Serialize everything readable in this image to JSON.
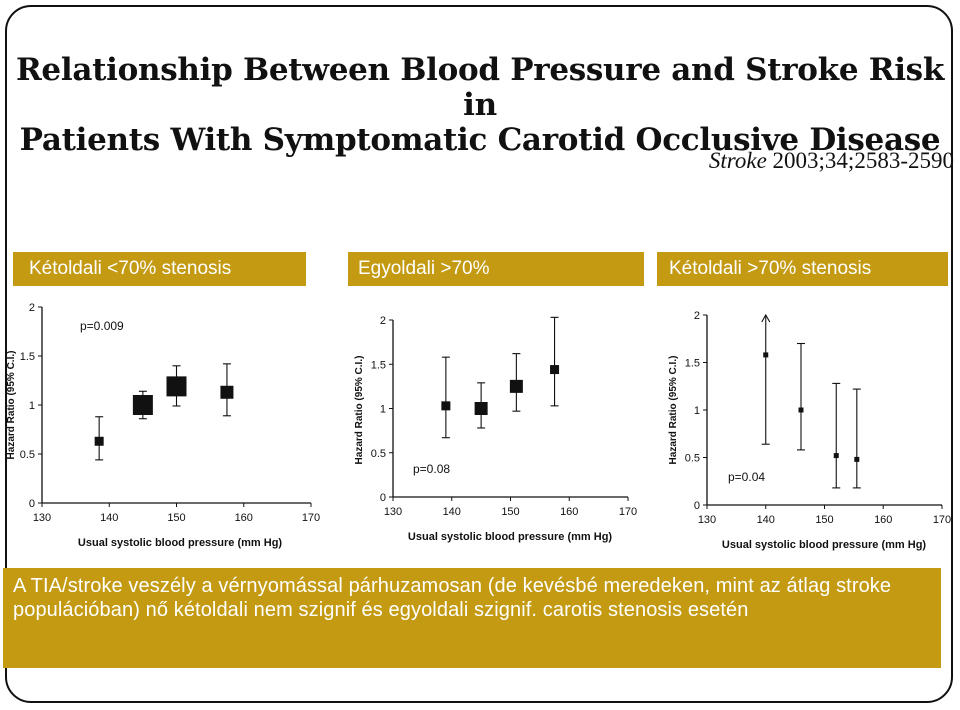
{
  "slide": {
    "title_line1": "Relationship Between Blood Pressure and Stroke Risk in",
    "title_line2": "Patients With Symptomatic Carotid Occlusive Disease",
    "citation_journal": "Stroke",
    "citation_ref": "2003;34;2583-2590",
    "panel_labels": [
      "Kétoldali <70% stenosis",
      "Egyoldali >70%",
      "Kétoldali >70% stenosis"
    ],
    "footer_text": "A TIA/stroke veszély a vérnyomással párhuzamosan (de kevésbé meredeken, mint az átlag stroke populációban) nő kétoldali nem szignif és egyoldali szignif. carotis stenosis esetén",
    "colors": {
      "accent": "#c39a12",
      "text": "#111111"
    }
  },
  "chart_data": [
    {
      "type": "scatter",
      "title": "Kétoldali <70% stenosis",
      "xlabel": "Usual systolic blood pressure (mm Hg)",
      "ylabel": "Hazard Ratio (95% C.I.)",
      "xlim": [
        130,
        170
      ],
      "ylim": [
        0,
        2
      ],
      "xticks": [
        130,
        140,
        150,
        160,
        170
      ],
      "yticks": [
        0,
        0.5,
        1,
        1.5,
        2
      ],
      "xtick_labels": [
        "130",
        "140",
        "150",
        "160",
        "170"
      ],
      "ytick_labels": [
        "0",
        "0.5",
        "1",
        "1.5",
        "2"
      ],
      "annotation": "p=0.009",
      "points": [
        {
          "x": 138.5,
          "y": 0.63,
          "lo": 0.44,
          "hi": 0.88,
          "size": "small"
        },
        {
          "x": 145,
          "y": 1.0,
          "lo": 0.86,
          "hi": 1.14,
          "size": "large"
        },
        {
          "x": 150,
          "y": 1.19,
          "lo": 0.99,
          "hi": 1.4,
          "size": "large"
        },
        {
          "x": 157.5,
          "y": 1.13,
          "lo": 0.89,
          "hi": 1.42,
          "size": "medium"
        }
      ]
    },
    {
      "type": "scatter",
      "title": "Egyoldali >70%",
      "xlabel": "Usual systolic blood pressure (mm Hg)",
      "ylabel": "Hazard Ratio (95% C.I.)",
      "xlim": [
        130,
        170
      ],
      "ylim": [
        0,
        2
      ],
      "xticks": [
        130,
        140,
        150,
        160,
        170
      ],
      "yticks": [
        0,
        0.5,
        1,
        1.5,
        2
      ],
      "xtick_labels": [
        "130",
        "140",
        "150",
        "160",
        "170"
      ],
      "ytick_labels": [
        "0",
        "0.5",
        "1",
        "1.5",
        "2"
      ],
      "annotation": "p=0.08",
      "points": [
        {
          "x": 139,
          "y": 1.03,
          "lo": 0.67,
          "hi": 1.58,
          "size": "small"
        },
        {
          "x": 145,
          "y": 1.0,
          "lo": 0.78,
          "hi": 1.29,
          "size": "medium"
        },
        {
          "x": 151,
          "y": 1.25,
          "lo": 0.97,
          "hi": 1.62,
          "size": "medium"
        },
        {
          "x": 157.5,
          "y": 1.44,
          "lo": 1.03,
          "hi": 2.03,
          "size": "small"
        }
      ]
    },
    {
      "type": "scatter",
      "title": "Kétoldali >70% stenosis",
      "xlabel": "Usual systolic blood pressure (mm Hg)",
      "ylabel": "Hazard Ratio (95% C.I.)",
      "xlim": [
        130,
        170
      ],
      "ylim": [
        0,
        2
      ],
      "xticks": [
        130,
        140,
        150,
        160,
        170
      ],
      "yticks": [
        0,
        0.5,
        1,
        1.5,
        2
      ],
      "xtick_labels": [
        "130",
        "140",
        "150",
        "160",
        "170"
      ],
      "ytick_labels": [
        "0",
        "0.5",
        "1",
        "1.5",
        "2"
      ],
      "annotation": "p=0.04",
      "points": [
        {
          "x": 140,
          "y": 1.58,
          "lo": 0.64,
          "hi": 2.0,
          "size": "tiny",
          "arrow": true
        },
        {
          "x": 146,
          "y": 1.0,
          "lo": 0.58,
          "hi": 1.7,
          "size": "tiny"
        },
        {
          "x": 152,
          "y": 0.52,
          "lo": 0.18,
          "hi": 1.28,
          "size": "tiny"
        },
        {
          "x": 155.5,
          "y": 0.48,
          "lo": 0.18,
          "hi": 1.22,
          "size": "tiny"
        }
      ]
    }
  ]
}
